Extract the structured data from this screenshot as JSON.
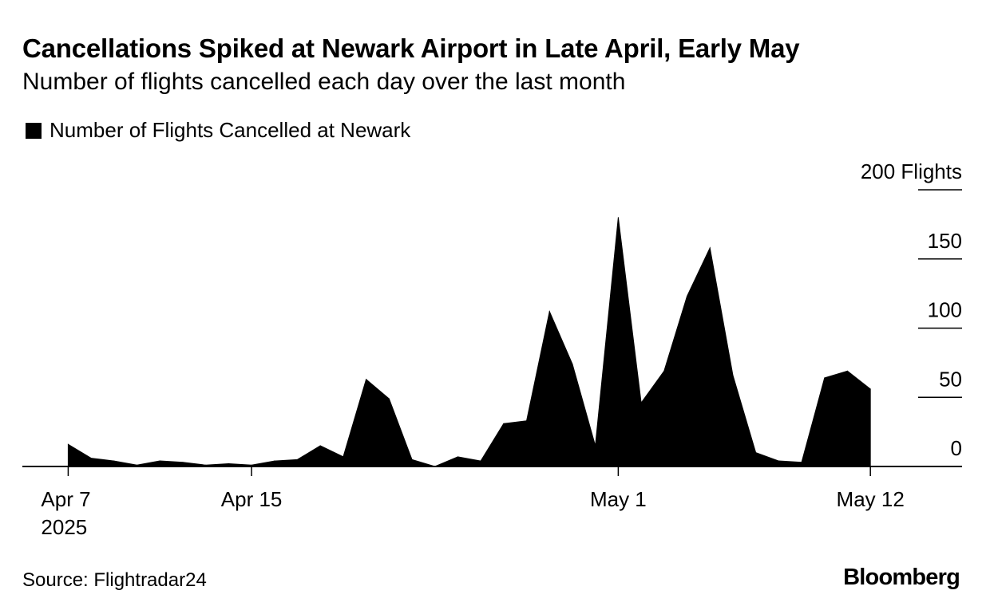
{
  "title": "Cancellations Spiked at Newark Airport in Late April, Early May",
  "subtitle": "Number of flights cancelled each day over the last month",
  "source": "Source: Flightradar24",
  "brand": "Bloomberg",
  "colors": {
    "series": "#000000",
    "background": "#ffffff"
  },
  "chart_data": {
    "type": "area",
    "title": "Cancellations Spiked at Newark Airport in Late April, Early May",
    "subtitle": "Number of flights cancelled each day over the last month",
    "legend": {
      "position": "top-left",
      "entries": [
        "Number of Flights Cancelled at Newark"
      ]
    },
    "x_ticks": [
      {
        "date": "2025-04-07",
        "label": "Apr 7",
        "sublabel": "2025"
      },
      {
        "date": "2025-04-15",
        "label": "Apr 15",
        "sublabel": ""
      },
      {
        "date": "2025-05-01",
        "label": "May 1",
        "sublabel": ""
      },
      {
        "date": "2025-05-12",
        "label": "May 12",
        "sublabel": ""
      }
    ],
    "y_ticks": [
      {
        "value": 0,
        "label": "0"
      },
      {
        "value": 50,
        "label": "50"
      },
      {
        "value": 100,
        "label": "100"
      },
      {
        "value": 150,
        "label": "150"
      },
      {
        "value": 200,
        "label": "200 Flights"
      }
    ],
    "ylim": [
      0,
      200
    ],
    "xlim": [
      "2025-04-05",
      "2025-05-16"
    ],
    "y_axis_side": "right",
    "grid": true,
    "series": [
      {
        "name": "Number of Flights Cancelled at Newark",
        "color": "#000000",
        "x": [
          "2025-04-07",
          "2025-04-08",
          "2025-04-09",
          "2025-04-10",
          "2025-04-11",
          "2025-04-12",
          "2025-04-13",
          "2025-04-14",
          "2025-04-15",
          "2025-04-16",
          "2025-04-17",
          "2025-04-18",
          "2025-04-19",
          "2025-04-20",
          "2025-04-21",
          "2025-04-22",
          "2025-04-23",
          "2025-04-24",
          "2025-04-25",
          "2025-04-26",
          "2025-04-27",
          "2025-04-28",
          "2025-04-29",
          "2025-04-30",
          "2025-05-01",
          "2025-05-02",
          "2025-05-03",
          "2025-05-04",
          "2025-05-05",
          "2025-05-06",
          "2025-05-07",
          "2025-05-08",
          "2025-05-09",
          "2025-05-10",
          "2025-05-11",
          "2025-05-12"
        ],
        "y": [
          16,
          6,
          4,
          1,
          4,
          3,
          1,
          2,
          1,
          4,
          5,
          15,
          7,
          63,
          49,
          5,
          0,
          7,
          4,
          31,
          33,
          112,
          74,
          15,
          180,
          46,
          69,
          123,
          158,
          66,
          10,
          4,
          3,
          64,
          69,
          56
        ]
      }
    ]
  }
}
